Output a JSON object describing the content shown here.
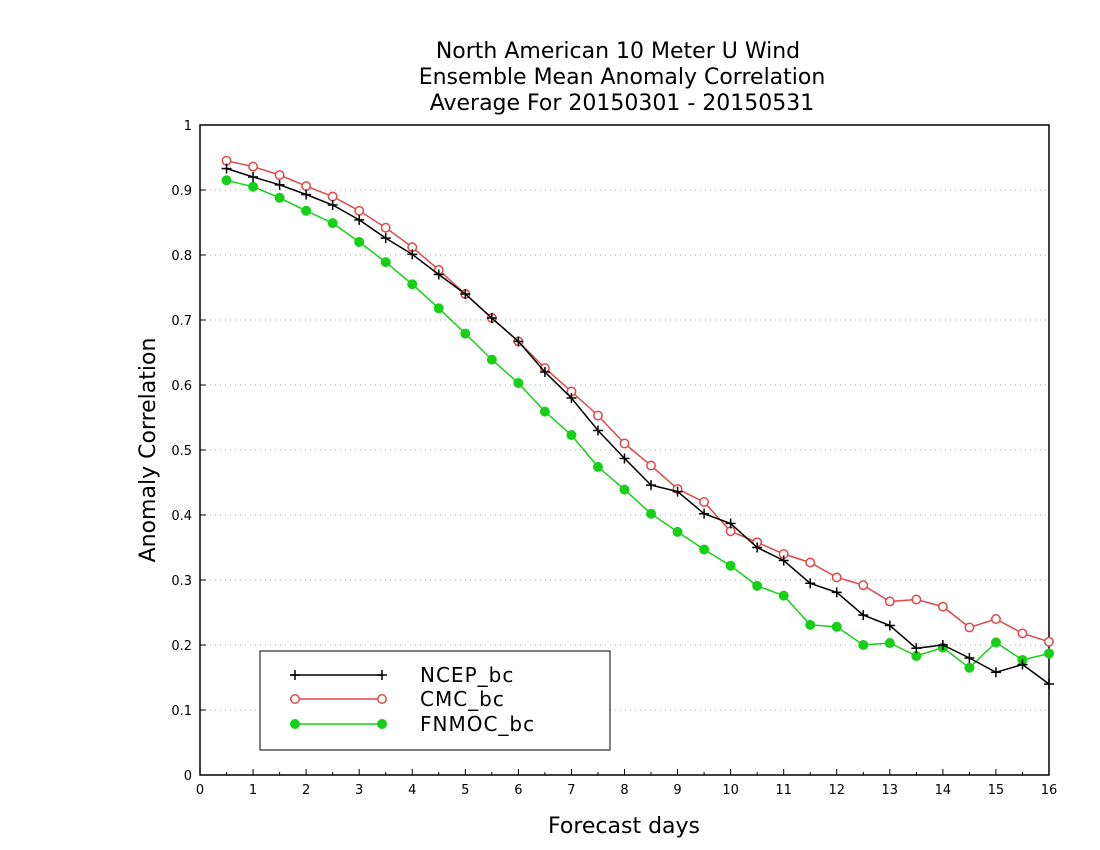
{
  "chart_data": {
    "type": "line",
    "title": [
      "North American 10 Meter U Wind",
      "Ensemble Mean Anomaly Correlation",
      "Average For 20150301 - 20150531"
    ],
    "xlabel": "Forecast days",
    "ylabel": "Anomaly Correlation",
    "xlim": [
      0,
      16
    ],
    "ylim": [
      0,
      1
    ],
    "xticks": [
      "0",
      "1",
      "2",
      "3",
      "4",
      "5",
      "6",
      "7",
      "8",
      "9",
      "10",
      "11",
      "12",
      "13",
      "14",
      "15",
      "16"
    ],
    "yticks": [
      "0",
      "0.1",
      "0.2",
      "0.3",
      "0.4",
      "0.5",
      "0.6",
      "0.7",
      "0.8",
      "0.9",
      "1"
    ],
    "grid": true,
    "legend_position": "bottom-left",
    "x": [
      0.5,
      1,
      1.5,
      2,
      2.5,
      3,
      3.5,
      4,
      4.5,
      5,
      5.5,
      6,
      6.5,
      7,
      7.5,
      8,
      8.5,
      9,
      9.5,
      10,
      10.5,
      11,
      11.5,
      12,
      12.5,
      13,
      13.5,
      14,
      14.5,
      15,
      15.5,
      16
    ],
    "series": [
      {
        "name": "NCEP_bc",
        "color": "#000000",
        "marker": "plus",
        "values": [
          0.933,
          0.92,
          0.908,
          0.893,
          0.877,
          0.854,
          0.826,
          0.801,
          0.77,
          0.74,
          0.703,
          0.667,
          0.62,
          0.58,
          0.53,
          0.487,
          0.446,
          0.436,
          0.402,
          0.387,
          0.35,
          0.33,
          0.295,
          0.281,
          0.246,
          0.23,
          0.195,
          0.2,
          0.18,
          0.158,
          0.17,
          0.14
        ]
      },
      {
        "name": "CMC_bc",
        "color": "#e04848",
        "marker": "open-circle",
        "values": [
          0.945,
          0.936,
          0.923,
          0.906,
          0.89,
          0.868,
          0.842,
          0.812,
          0.777,
          0.74,
          0.703,
          0.667,
          0.626,
          0.59,
          0.553,
          0.51,
          0.476,
          0.44,
          0.42,
          0.375,
          0.358,
          0.34,
          0.327,
          0.304,
          0.292,
          0.267,
          0.27,
          0.259,
          0.227,
          0.24,
          0.218,
          0.205
        ]
      },
      {
        "name": "FNMOC_bc",
        "color": "#16d016",
        "marker": "filled-circle",
        "values": [
          0.915,
          0.905,
          0.888,
          0.868,
          0.849,
          0.82,
          0.789,
          0.755,
          0.718,
          0.679,
          0.639,
          0.603,
          0.559,
          0.523,
          0.474,
          0.439,
          0.402,
          0.374,
          0.347,
          0.322,
          0.291,
          0.276,
          0.231,
          0.228,
          0.2,
          0.203,
          0.183,
          0.196,
          0.165,
          0.204,
          0.177,
          0.187
        ]
      }
    ]
  }
}
